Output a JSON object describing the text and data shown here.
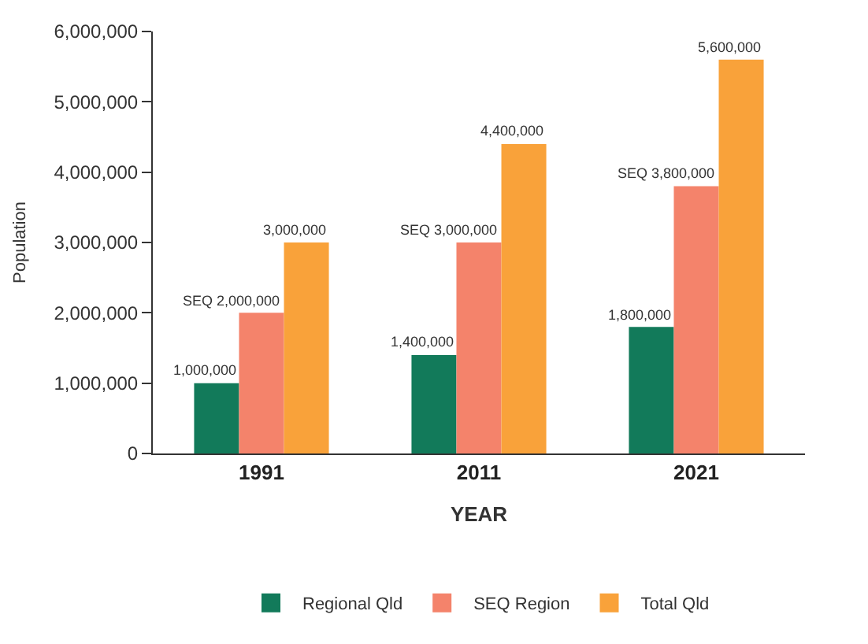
{
  "chart_data": {
    "type": "bar",
    "xlabel": "YEAR",
    "ylabel": "Population",
    "categories": [
      "1991",
      "2011",
      "2021"
    ],
    "series": [
      {
        "name": "Regional Qld",
        "color": "#127a5a",
        "values": [
          1000000,
          1400000,
          1800000
        ],
        "value_labels": [
          "1,000,000",
          "1,400,000",
          "1,800,000"
        ]
      },
      {
        "name": "SEQ Region",
        "color": "#f4836b",
        "values": [
          2000000,
          3000000,
          3800000
        ],
        "value_labels": [
          "SEQ 2,000,000",
          "SEQ 3,000,000",
          "SEQ 3,800,000"
        ]
      },
      {
        "name": "Total Qld",
        "color": "#f9a23a",
        "values": [
          3000000,
          4400000,
          5600000
        ],
        "value_labels": [
          "3,000,000",
          "4,400,000",
          "5,600,000"
        ]
      }
    ],
    "ylim": [
      0,
      6000000
    ],
    "yticks": [
      {
        "value": 0,
        "label": "0"
      },
      {
        "value": 1000000,
        "label": "1,000,000"
      },
      {
        "value": 2000000,
        "label": "2,000,000"
      },
      {
        "value": 3000000,
        "label": "3,000,000"
      },
      {
        "value": 4000000,
        "label": "4,000,000"
      },
      {
        "value": 5000000,
        "label": "5,000,000"
      },
      {
        "value": 6000000,
        "label": "6,000,000"
      }
    ],
    "legend": "bottom"
  }
}
